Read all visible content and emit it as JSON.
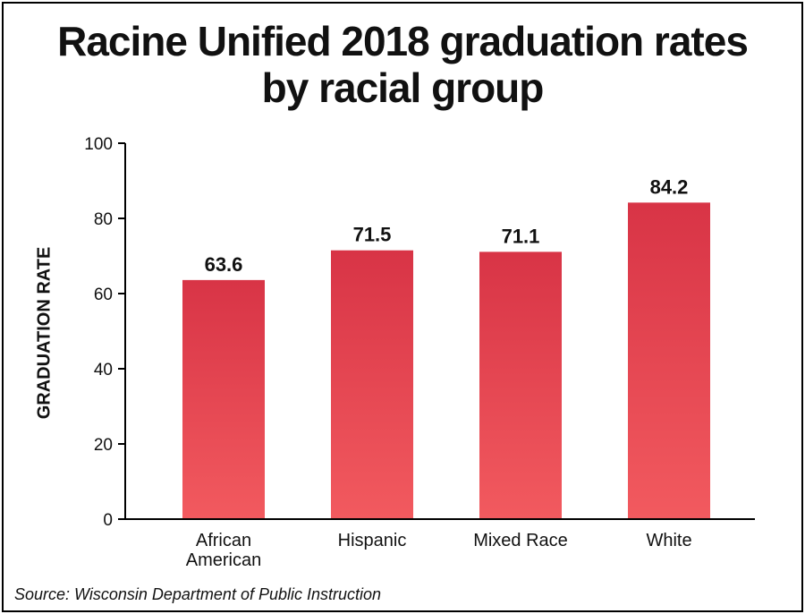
{
  "chart_data": {
    "type": "bar",
    "title_lines": [
      "Racine Unified 2018 graduation rates",
      "by racial group"
    ],
    "ylabel": "GRADUATION RATE",
    "xlabel": "",
    "categories": [
      [
        "African",
        "American"
      ],
      [
        "Hispanic"
      ],
      [
        "Mixed Race"
      ],
      [
        "White"
      ]
    ],
    "values": [
      63.6,
      71.5,
      71.1,
      84.2
    ],
    "value_labels": [
      "63.6",
      "71.5",
      "71.1",
      "84.2"
    ],
    "ylim": [
      0,
      100
    ],
    "yticks": [
      0,
      20,
      40,
      60,
      80,
      100
    ],
    "grid": false,
    "legend": "none",
    "bar_color_top": "#d83446",
    "bar_color_bottom": "#f25a5f",
    "source": "Source: Wisconsin Department of Public Instruction"
  }
}
